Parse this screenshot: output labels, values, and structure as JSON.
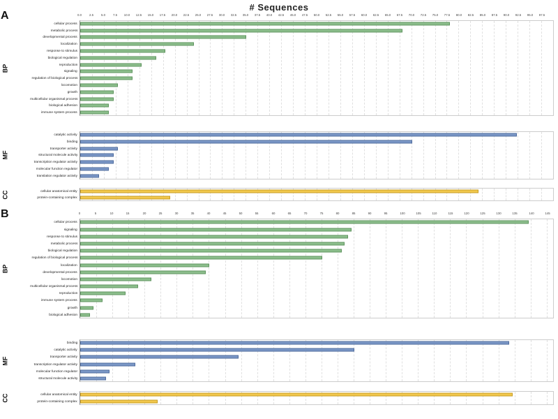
{
  "title": "# Sequences",
  "chart_data": [
    {
      "id": "A",
      "label": "A",
      "type": "bar",
      "orientation": "horizontal",
      "axis": {
        "max": 100,
        "tick_step": 2.5,
        "tick_labels": [
          "0.0",
          "2.5",
          "5.0",
          "7.5",
          "10.0",
          "12.5",
          "15.0",
          "17.5",
          "20.0",
          "22.5",
          "25.0",
          "27.5",
          "30.0",
          "32.5",
          "35.0",
          "37.5",
          "40.0",
          "42.5",
          "45.0",
          "47.5",
          "50.0",
          "52.5",
          "55.0",
          "57.5",
          "60.0",
          "62.5",
          "65.0",
          "67.5",
          "70.0",
          "72.5",
          "75.0",
          "77.5",
          "80.0",
          "82.5",
          "85.0",
          "87.5",
          "90.0",
          "92.5",
          "95.0",
          "97.5"
        ]
      },
      "groups": [
        {
          "name": "BP",
          "color": "#8cbe8c",
          "border_color": "#5f945f",
          "categories": [
            "cellular process",
            "metabolic process",
            "developmental process",
            "localization",
            "response to stimulus",
            "biological regulation",
            "reproduction",
            "signaling",
            "regulation of biological process",
            "locomotion",
            "growth",
            "multicellular organismal process",
            "biological adhesion",
            "immune system process"
          ],
          "values": [
            78,
            68,
            35,
            24,
            18,
            16,
            13,
            11,
            11,
            8,
            7,
            7,
            6,
            6
          ]
        },
        {
          "name": "MF",
          "color": "#7b97c6",
          "border_color": "#4f6c9e",
          "categories": [
            "catalytic activity",
            "binding",
            "transporter activity",
            "structural molecule activity",
            "transcription regulator activity",
            "molecular function regulator",
            "translation regulator activity"
          ],
          "values": [
            92,
            70,
            8,
            7,
            7,
            6,
            4
          ]
        },
        {
          "name": "CC",
          "color": "#f2c84d",
          "border_color": "#c79c23",
          "categories": [
            "cellular anatomical entity",
            "protein-containing complex"
          ],
          "values": [
            84,
            19
          ]
        }
      ]
    },
    {
      "id": "B",
      "label": "B",
      "type": "bar",
      "orientation": "horizontal",
      "axis": {
        "max": 147,
        "tick_step": 5,
        "tick_labels": [
          "0",
          "5",
          "10",
          "15",
          "20",
          "25",
          "30",
          "35",
          "40",
          "45",
          "50",
          "55",
          "60",
          "65",
          "70",
          "75",
          "80",
          "85",
          "90",
          "95",
          "100",
          "105",
          "110",
          "115",
          "120",
          "125",
          "130",
          "135",
          "140",
          "145"
        ]
      },
      "groups": [
        {
          "name": "BP",
          "color": "#8cbe8c",
          "border_color": "#5f945f",
          "categories": [
            "cellular process",
            "signaling",
            "response to stimulus",
            "metabolic process",
            "biological regulation",
            "regulation of biological process",
            "localization",
            "developmental process",
            "locomotion",
            "multicellular organismal process",
            "reproduction",
            "immune system process",
            "growth",
            "biological adhesion"
          ],
          "values": [
            139,
            84,
            83,
            82,
            81,
            75,
            40,
            39,
            22,
            18,
            14,
            7,
            4,
            3
          ]
        },
        {
          "name": "MF",
          "color": "#7b97c6",
          "border_color": "#4f6c9e",
          "categories": [
            "binding",
            "catalytic activity",
            "transporter activity",
            "transcription regulator activity",
            "molecular function regulator",
            "structural molecule activity"
          ],
          "values": [
            133,
            85,
            49,
            17,
            9,
            8
          ]
        },
        {
          "name": "CC",
          "color": "#f2c84d",
          "border_color": "#c79c23",
          "categories": [
            "cellular anatomical entity",
            "protein-containing complex"
          ],
          "values": [
            134,
            24
          ]
        }
      ]
    }
  ]
}
